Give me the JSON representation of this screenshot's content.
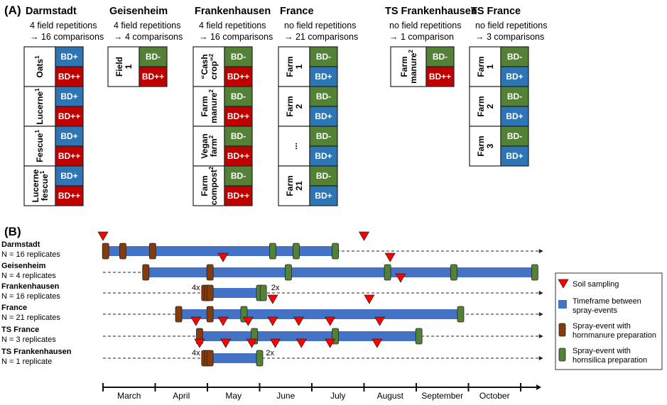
{
  "panelA": {
    "tag": "(A)",
    "sites": [
      {
        "title": "Darmstadt",
        "desc1": "4 field repetitions",
        "desc2": "→ 16 comparisons",
        "groups": [
          {
            "label": "Oats",
            "sup": "1",
            "treatments": [
              "BD+",
              "BD++"
            ]
          },
          {
            "label": "Lucerne",
            "sup": "1",
            "treatments": [
              "BD+",
              "BD++"
            ]
          },
          {
            "label": "Fescue",
            "sup": "1",
            "treatments": [
              "BD+",
              "BD++"
            ]
          },
          {
            "label": "Lucerne fescue",
            "sup": "1",
            "treatments": [
              "BD+",
              "BD++"
            ]
          }
        ]
      },
      {
        "title": "Geisenheim",
        "desc1": "4 field repetitions",
        "desc2": "→ 4 comparisons",
        "groups": [
          {
            "label": "Field 1",
            "sup": "",
            "treatments": [
              "BD-",
              "BD++"
            ]
          }
        ]
      },
      {
        "title": "Frankenhausen",
        "desc1": "4 field repetitions",
        "desc2": "→ 16 comparisons",
        "groups": [
          {
            "label": "“Cash crop”",
            "sup": "2",
            "treatments": [
              "BD-",
              "BD++"
            ]
          },
          {
            "label": "Farm manure",
            "sup": "2",
            "treatments": [
              "BD-",
              "BD++"
            ]
          },
          {
            "label": "Vegan farm",
            "sup": "2",
            "treatments": [
              "BD-",
              "BD++"
            ]
          },
          {
            "label": "Farm compost",
            "sup": "2",
            "treatments": [
              "BD-",
              "BD++"
            ]
          }
        ]
      },
      {
        "title": "France",
        "desc1": "no field repetitions",
        "desc2": "→ 21 comparisons",
        "groups": [
          {
            "label": "Farm 1",
            "sup": "",
            "treatments": [
              "BD-",
              "BD+"
            ]
          },
          {
            "label": "Farm 2",
            "sup": "",
            "treatments": [
              "BD-",
              "BD+"
            ]
          },
          {
            "label": "...",
            "sup": "",
            "treatments": [
              "BD-",
              "BD+"
            ]
          },
          {
            "label": "Farm 21",
            "sup": "",
            "treatments": [
              "BD-",
              "BD+"
            ]
          }
        ]
      },
      {
        "title": "TS Frankenhausen",
        "desc1": "no field repetitions",
        "desc2": "→ 1 comparison",
        "groups": [
          {
            "label": "Farm manure",
            "sup": "2",
            "treatments": [
              "BD-",
              "BD++"
            ]
          }
        ]
      },
      {
        "title": "TS France",
        "desc1": "no field repetitions",
        "desc2": "→ 3 comparisons",
        "groups": [
          {
            "label": "Farm 1",
            "sup": "",
            "treatments": [
              "BD-",
              "BD+"
            ]
          },
          {
            "label": "Farm 2",
            "sup": "",
            "treatments": [
              "BD-",
              "BD+"
            ]
          },
          {
            "label": "Farm 3",
            "sup": "",
            "treatments": [
              "BD-",
              "BD+"
            ]
          }
        ]
      }
    ],
    "treatment_colors": {
      "BD-": "#538135",
      "BD+": "#2e75b6",
      "BD++": "#c00000"
    }
  },
  "panelB": {
    "tag": "(B)",
    "months": [
      "March",
      "April",
      "May",
      "June",
      "July",
      "August",
      "September",
      "October"
    ],
    "rows": [
      {
        "name": "Darmstadt",
        "n": "N = 16 replicates",
        "dashed_before": false,
        "bar": [
          0.0,
          4.45
        ],
        "dashed_after": true,
        "hornmanure": [
          0.05,
          0.38,
          0.95
        ],
        "hornsilica": [
          3.25,
          3.7,
          4.45
        ],
        "soil": [
          0.0,
          5.0
        ],
        "labels": []
      },
      {
        "name": "Geisenheim",
        "n": "N = 4 replicates",
        "dashed_before": true,
        "bar": [
          0.82,
          8.32
        ],
        "dashed_after": false,
        "hornmanure": [
          0.82,
          2.05
        ],
        "hornsilica": [
          3.55,
          5.45,
          6.72,
          8.27
        ],
        "soil": [
          2.3,
          5.5
        ],
        "labels": []
      },
      {
        "name": "Frankenhausen",
        "n": "N = 16 replicates",
        "dashed_before": true,
        "bar": [
          1.95,
          3.0
        ],
        "dashed_after": true,
        "hornmanure": [
          1.95,
          2.0,
          2.05
        ],
        "hornsilica": [
          3.0,
          3.07
        ],
        "soil": [
          5.7
        ],
        "labels": [
          {
            "text": "4x",
            "at": 1.78
          },
          {
            "text": "2x",
            "at": 3.3
          }
        ]
      },
      {
        "name": "France",
        "n": "N = 21 replicates",
        "dashed_before": true,
        "bar": [
          1.45,
          6.85
        ],
        "dashed_after": true,
        "hornmanure": [
          1.45,
          2.05
        ],
        "hornsilica": [
          2.7,
          6.85
        ],
        "soil": [
          3.25,
          5.1
        ],
        "labels": []
      },
      {
        "name": "TS France",
        "n": "N = 3 replicates",
        "dashed_before": true,
        "bar": [
          1.85,
          6.05
        ],
        "dashed_after": true,
        "hornmanure": [
          1.85
        ],
        "hornsilica": [
          2.9,
          4.45,
          6.05
        ],
        "soil": [
          1.78,
          2.3,
          2.78,
          3.25,
          3.75,
          4.35,
          5.3
        ],
        "labels": []
      },
      {
        "name": "TS Frankenhausen",
        "n": "N = 1 replicate",
        "dashed_before": true,
        "bar": [
          1.95,
          3.0
        ],
        "dashed_after": true,
        "hornmanure": [
          1.95,
          2.0,
          2.05
        ],
        "hornsilica": [
          3.0
        ],
        "soil": [
          1.85,
          2.35,
          2.85,
          3.3,
          3.8,
          4.35,
          5.25
        ],
        "labels": [
          {
            "text": "4x",
            "at": 1.78
          },
          {
            "text": "2x",
            "at": 3.2
          }
        ]
      }
    ],
    "legend": {
      "soil": "Soil sampling",
      "timeframe1": "Timeframe between",
      "timeframe2": "spray-events",
      "manure1": "Spray-event with",
      "manure2": "hornmanure preparation",
      "silica1": "Spray-event with",
      "silica2": "hornsilica preparation"
    },
    "colors": {
      "bar": "#4472c4",
      "hornmanure": "#843c0c",
      "hornsilica": "#548235",
      "soil": "#ff0000"
    }
  }
}
